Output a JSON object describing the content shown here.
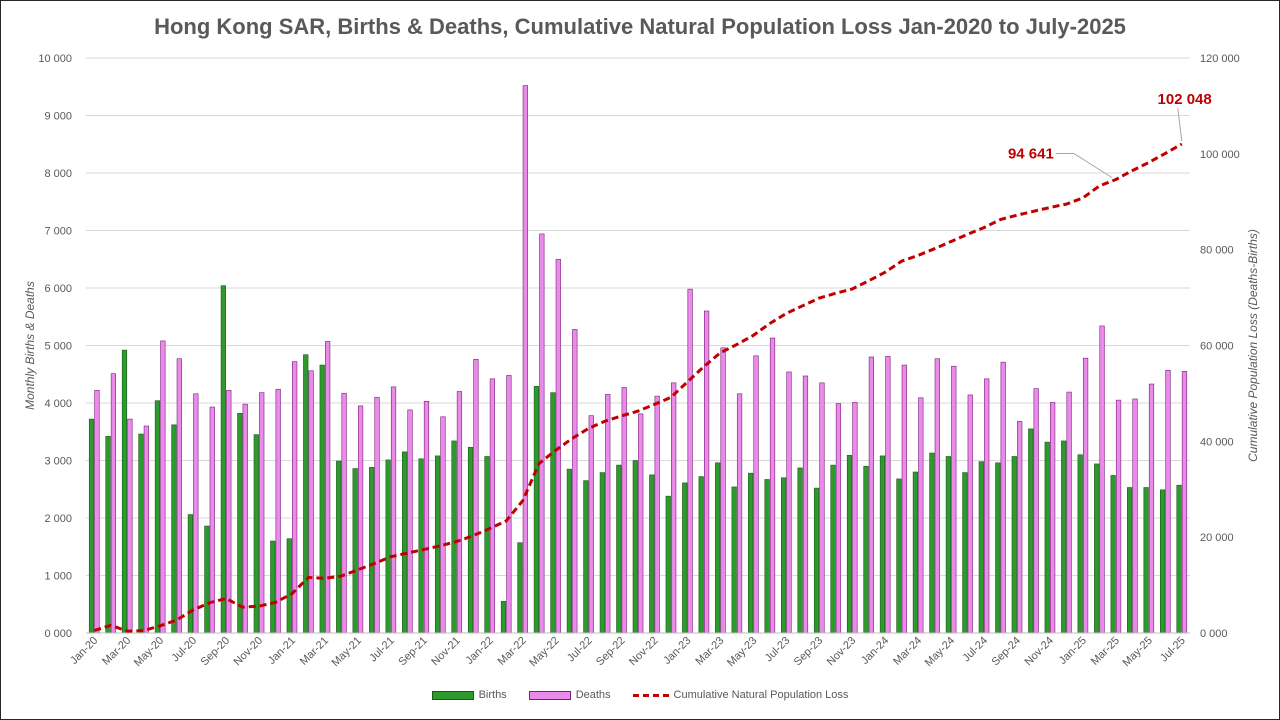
{
  "chart_data": {
    "type": "bar",
    "title": "Hong Kong SAR, Births & Deaths, Cumulative Natural Population Loss Jan-2020 to July-2025",
    "ylabel": "Monthly Births & Deaths",
    "y2label": "Cumulative Population Loss (Deaths-Births)",
    "ylim": [
      0,
      10000
    ],
    "y2lim": [
      0,
      120000
    ],
    "yticks": [
      "0 000",
      "1 000",
      "2 000",
      "3 000",
      "4 000",
      "5 000",
      "6 000",
      "7 000",
      "8 000",
      "9 000",
      "10 000"
    ],
    "y2ticks": [
      "0 000",
      "20 000",
      "40 000",
      "60 000",
      "80 000",
      "100 000",
      "120 000"
    ],
    "yticks_values": [
      0,
      1000,
      2000,
      3000,
      4000,
      5000,
      6000,
      7000,
      8000,
      9000,
      10000
    ],
    "y2ticks_values": [
      0,
      20000,
      40000,
      60000,
      80000,
      100000,
      120000
    ],
    "categories": [
      "Jan-20",
      "Feb-20",
      "Mar-20",
      "Apr-20",
      "May-20",
      "Jun-20",
      "Jul-20",
      "Aug-20",
      "Sep-20",
      "Oct-20",
      "Nov-20",
      "Dec-20",
      "Jan-21",
      "Feb-21",
      "Mar-21",
      "Apr-21",
      "May-21",
      "Jun-21",
      "Jul-21",
      "Aug-21",
      "Sep-21",
      "Oct-21",
      "Nov-21",
      "Dec-21",
      "Jan-22",
      "Feb-22",
      "Mar-22",
      "Apr-22",
      "May-22",
      "Jun-22",
      "Jul-22",
      "Aug-22",
      "Sep-22",
      "Oct-22",
      "Nov-22",
      "Dec-22",
      "Jan-23",
      "Feb-23",
      "Mar-23",
      "Apr-23",
      "May-23",
      "Jun-23",
      "Jul-23",
      "Aug-23",
      "Sep-23",
      "Oct-23",
      "Nov-23",
      "Dec-23",
      "Jan-24",
      "Feb-24",
      "Mar-24",
      "Apr-24",
      "May-24",
      "Jun-24",
      "Jul-24",
      "Aug-24",
      "Sep-24",
      "Oct-24",
      "Nov-24",
      "Dec-24",
      "Jan-25",
      "Feb-25",
      "Mar-25",
      "Apr-25",
      "May-25",
      "Jun-25",
      "Jul-25"
    ],
    "x_tick_labels": [
      "Jan-20",
      "Mar-20",
      "May-20",
      "Jul-20",
      "Sep-20",
      "Nov-20",
      "Jan-21",
      "Mar-21",
      "May-21",
      "Jul-21",
      "Sep-21",
      "Nov-21",
      "Jan-22",
      "Mar-22",
      "May-22",
      "Jul-22",
      "Sep-22",
      "Nov-22",
      "Jan-23",
      "Mar-23",
      "May-23",
      "Jul-23",
      "Sep-23",
      "Nov-23",
      "Jan-24",
      "Mar-24",
      "May-24",
      "Jul-24",
      "Sep-24",
      "Nov-24",
      "Jan-25",
      "Mar-25",
      "May-25",
      "Jul-25"
    ],
    "series": [
      {
        "name": "Births",
        "type": "bar",
        "axis": "left",
        "color": "#2e9a2e",
        "values": [
          3720,
          3420,
          4920,
          3460,
          4040,
          3620,
          2060,
          1860,
          6040,
          3820,
          3450,
          1600,
          1640,
          4840,
          4660,
          2990,
          2860,
          2880,
          3010,
          3150,
          3030,
          3080,
          3340,
          3230,
          3070,
          550,
          1570,
          4290,
          4180,
          2850,
          2650,
          2790,
          2920,
          3000,
          2750,
          2380,
          2610,
          2720,
          2960,
          2540,
          2780,
          2670,
          2700,
          2870,
          2520,
          2920,
          3090,
          2900,
          3080,
          2680,
          2800,
          3130,
          3070,
          2790,
          2980,
          2960,
          3070,
          3550,
          3320,
          3340,
          3100,
          2940,
          2740,
          2530,
          2530,
          2490,
          2570
        ]
      },
      {
        "name": "Deaths",
        "type": "bar",
        "axis": "left",
        "color": "#ea8bea",
        "values": [
          4220,
          4510,
          3720,
          3600,
          5080,
          4770,
          4160,
          3930,
          4220,
          3980,
          4180,
          4240,
          4720,
          4560,
          5070,
          4170,
          3950,
          4100,
          4280,
          3880,
          4030,
          3760,
          4200,
          4760,
          4420,
          4480,
          9520,
          6940,
          6500,
          5280,
          3780,
          4150,
          4270,
          3810,
          4120,
          4350,
          5980,
          5600,
          4960,
          4160,
          4820,
          5130,
          4540,
          4470,
          4350,
          3990,
          4010,
          4800,
          4810,
          4660,
          4090,
          4770,
          4640,
          4140,
          4420,
          4710,
          3680,
          4250,
          4010,
          4190,
          4780,
          5340,
          4050,
          4070,
          4330,
          4570,
          4550
        ]
      },
      {
        "name": "Cumulative Natural Population Loss",
        "type": "line",
        "axis": "right",
        "color": "#c00000",
        "values": [
          500,
          1600,
          400,
          500,
          1500,
          2700,
          4800,
          6300,
          7200,
          5400,
          5600,
          6400,
          8200,
          11600,
          11400,
          11900,
          13200,
          14500,
          15900,
          16700,
          17400,
          18200,
          19100,
          20300,
          21800,
          23400,
          27600,
          35400,
          38100,
          40600,
          42700,
          44200,
          45300,
          46300,
          47700,
          49200,
          52400,
          55600,
          58500,
          60200,
          62100,
          64600,
          66700,
          68300,
          69900,
          70900,
          71800,
          73500,
          75300,
          77600,
          78800,
          80200,
          81700,
          83200,
          84600,
          86300,
          87200,
          88000,
          88800,
          89500,
          90800,
          93300,
          94641,
          96500,
          98200,
          100100,
          102048
        ]
      }
    ],
    "annotations": [
      {
        "text": "94 641",
        "category": "Mar-25",
        "value": 94641
      },
      {
        "text": "102 048",
        "category": "Jul-25",
        "value": 102048
      }
    ],
    "legend": [
      "Births",
      "Deaths",
      "Cumulative Natural Population Loss"
    ],
    "legend_position": "bottom",
    "grid": true
  }
}
